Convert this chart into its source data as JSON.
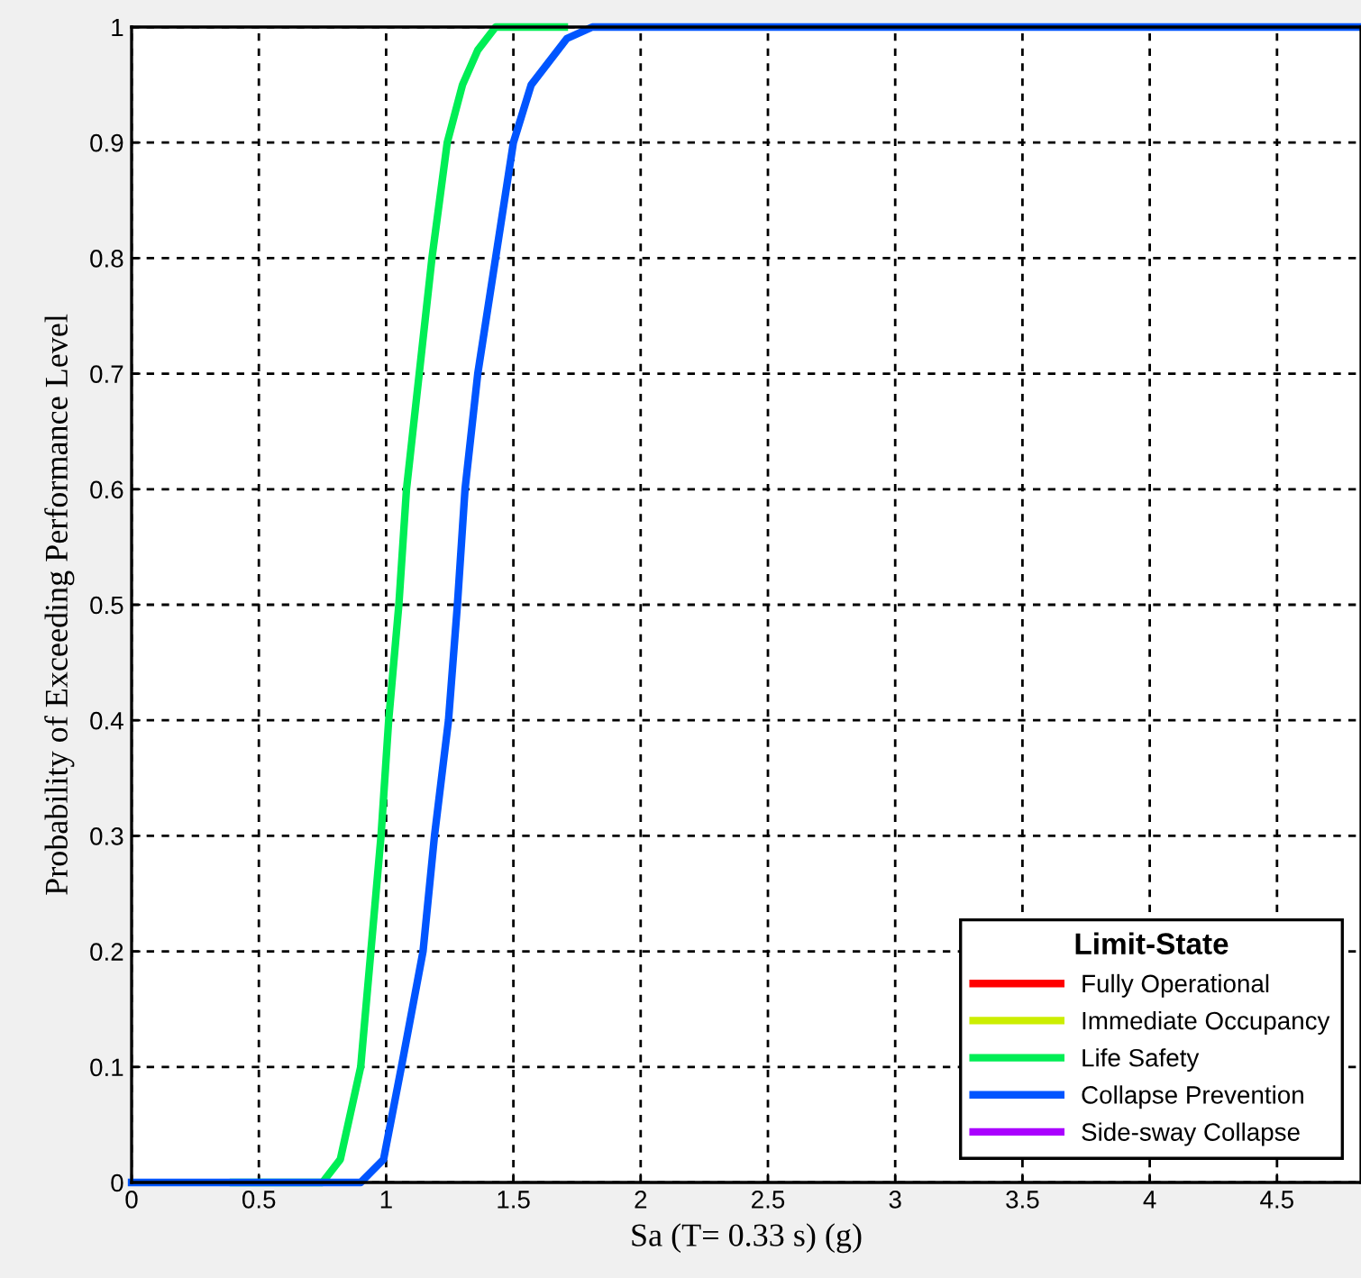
{
  "chart_data": {
    "type": "line",
    "xlabel": "Sa (T= 0.33 s) (g)",
    "ylabel": "Probability of Exceeding Performance Level",
    "legend_title": "Limit-State",
    "xlim": [
      0,
      4.83
    ],
    "ylim": [
      0,
      1
    ],
    "xticks": [
      0,
      0.5,
      1,
      1.5,
      2,
      2.5,
      3,
      3.5,
      4,
      4.5
    ],
    "yticks": [
      0,
      0.1,
      0.2,
      0.3,
      0.4,
      0.5,
      0.6,
      0.7,
      0.8,
      0.9,
      1
    ],
    "grid": true,
    "legend": "bottom right",
    "line_style": "solid",
    "marker": "none",
    "series": [
      {
        "name": "Fully Operational",
        "color": "#ff0000"
      },
      {
        "name": "Immediate Occupancy",
        "color": "#ccee00"
      },
      {
        "name": "Life Safety",
        "color": "#00ee55",
        "x": [
          0.4,
          0.75,
          0.82,
          0.9,
          0.94,
          0.98,
          1.01,
          1.05,
          1.08,
          1.13,
          1.18,
          1.24,
          1.3,
          1.36,
          1.43,
          1.7
        ],
        "values": [
          0,
          0,
          0.02,
          0.1,
          0.2,
          0.3,
          0.4,
          0.5,
          0.6,
          0.7,
          0.8,
          0.9,
          0.95,
          0.98,
          1,
          1
        ]
      },
      {
        "name": "Collapse Prevention",
        "color": "#0055ff",
        "x": [
          0,
          0.9,
          0.99,
          1.06,
          1.145,
          1.19,
          1.245,
          1.28,
          1.31,
          1.36,
          1.43,
          1.5,
          1.57,
          1.71,
          1.81,
          4.83
        ],
        "values": [
          0,
          0,
          0.02,
          0.1,
          0.2,
          0.3,
          0.4,
          0.5,
          0.6,
          0.7,
          0.8,
          0.9,
          0.95,
          0.99,
          1,
          1
        ]
      },
      {
        "name": "Side-sway Collapse",
        "color": "#aa00ff"
      }
    ]
  }
}
